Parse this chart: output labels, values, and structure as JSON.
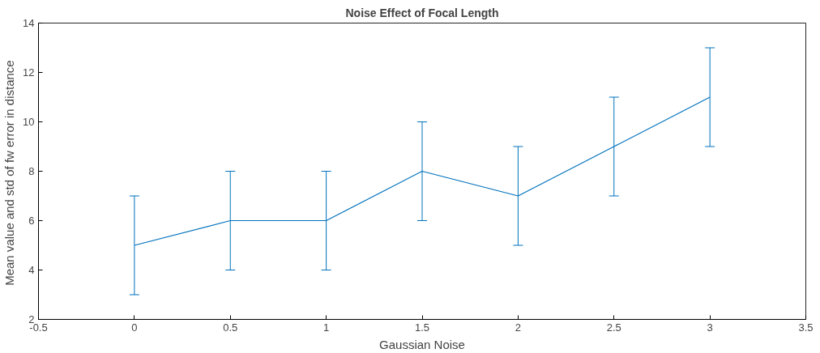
{
  "chart_data": {
    "type": "line",
    "title": "Noise Effect of Focal Length",
    "xlabel": "Gaussian Noise",
    "ylabel": "Mean value and std of fw error in  distance",
    "x": [
      0,
      0.5,
      1,
      1.5,
      2,
      2.5,
      3
    ],
    "series": [
      {
        "color": "#0072bd",
        "values": [
          5,
          6,
          6,
          8,
          7,
          9,
          11
        ],
        "errors": [
          2,
          2,
          2,
          2,
          2,
          2,
          2
        ]
      }
    ],
    "xlim": [
      -0.5,
      3.5
    ],
    "xticks": [
      -0.5,
      0,
      0.5,
      1,
      1.5,
      2,
      2.5,
      3,
      3.5
    ],
    "ylim": [
      2,
      14
    ],
    "yticks": [
      2,
      4,
      6,
      8,
      10,
      12,
      14
    ],
    "grid": false,
    "line_style": "solid"
  }
}
